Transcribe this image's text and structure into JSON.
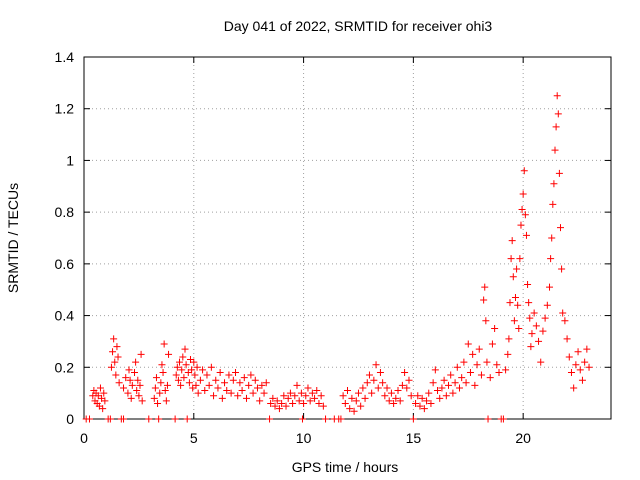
{
  "chart_data": {
    "type": "scatter",
    "title": "Day 041 of 2022, SRMTID for receiver ohi3",
    "xlabel": "GPS time / hours",
    "ylabel": "SRMTID / TECUs",
    "xlim": [
      0,
      24
    ],
    "ylim": [
      0,
      1.4
    ],
    "xticks": [
      0,
      5,
      10,
      15,
      20
    ],
    "yticks": [
      0,
      0.2,
      0.4,
      0.6,
      0.8,
      1,
      1.2,
      1.4
    ],
    "ytick_labels": [
      "0",
      "0.2",
      "0.4",
      "0.6",
      "0.8",
      "1",
      "1.2",
      "1.4"
    ],
    "grid": true,
    "marker": "+",
    "color": "#ff0000",
    "series": [
      {
        "name": "SRMTID",
        "points": [
          [
            0.1,
            0.0
          ],
          [
            0.25,
            0.0
          ],
          [
            0.4,
            0.09
          ],
          [
            0.45,
            0.11
          ],
          [
            0.5,
            0.07
          ],
          [
            0.55,
            0.1
          ],
          [
            0.6,
            0.06
          ],
          [
            0.65,
            0.09
          ],
          [
            0.7,
            0.05
          ],
          [
            0.75,
            0.12
          ],
          [
            0.8,
            0.08
          ],
          [
            0.85,
            0.04
          ],
          [
            0.9,
            0.1
          ],
          [
            0.95,
            0.07
          ],
          [
            1.1,
            0.0
          ],
          [
            1.2,
            0.0
          ],
          [
            1.25,
            0.2
          ],
          [
            1.3,
            0.26
          ],
          [
            1.35,
            0.31
          ],
          [
            1.4,
            0.22
          ],
          [
            1.45,
            0.17
          ],
          [
            1.5,
            0.28
          ],
          [
            1.55,
            0.24
          ],
          [
            1.6,
            0.14
          ],
          [
            1.7,
            0.0
          ],
          [
            1.8,
            0.0
          ],
          [
            1.8,
            0.12
          ],
          [
            1.9,
            0.16
          ],
          [
            2.0,
            0.1
          ],
          [
            2.05,
            0.19
          ],
          [
            2.1,
            0.15
          ],
          [
            2.15,
            0.08
          ],
          [
            2.2,
            0.13
          ],
          [
            2.3,
            0.18
          ],
          [
            2.35,
            0.22
          ],
          [
            2.4,
            0.11
          ],
          [
            2.45,
            0.15
          ],
          [
            2.5,
            0.09
          ],
          [
            2.55,
            0.13
          ],
          [
            2.6,
            0.25
          ],
          [
            2.65,
            0.07
          ],
          [
            2.95,
            0.0
          ],
          [
            3.2,
            0.08
          ],
          [
            3.25,
            0.12
          ],
          [
            3.3,
            0.16
          ],
          [
            3.35,
            0.06
          ],
          [
            3.4,
            0.0
          ],
          [
            3.45,
            0.1
          ],
          [
            3.5,
            0.14
          ],
          [
            3.55,
            0.21
          ],
          [
            3.6,
            0.18
          ],
          [
            3.65,
            0.29
          ],
          [
            3.7,
            0.11
          ],
          [
            3.75,
            0.07
          ],
          [
            3.8,
            0.13
          ],
          [
            3.85,
            0.25
          ],
          [
            4.15,
            0.0
          ],
          [
            4.2,
            0.17
          ],
          [
            4.25,
            0.2
          ],
          [
            4.3,
            0.15
          ],
          [
            4.35,
            0.22
          ],
          [
            4.4,
            0.13
          ],
          [
            4.45,
            0.19
          ],
          [
            4.5,
            0.24
          ],
          [
            4.55,
            0.16
          ],
          [
            4.6,
            0.27
          ],
          [
            4.65,
            0.21
          ],
          [
            4.7,
            0.0
          ],
          [
            4.75,
            0.18
          ],
          [
            4.8,
            0.14
          ],
          [
            4.85,
            0.23
          ],
          [
            4.9,
            0.19
          ],
          [
            4.95,
            0.12
          ],
          [
            5.0,
            0.22
          ],
          [
            5.05,
            0.17
          ],
          [
            5.1,
            0.13
          ],
          [
            5.15,
            0.2
          ],
          [
            5.2,
            0.1
          ],
          [
            5.3,
            0.15
          ],
          [
            5.4,
            0.19
          ],
          [
            5.5,
            0.11
          ],
          [
            5.6,
            0.17
          ],
          [
            5.7,
            0.13
          ],
          [
            5.8,
            0.2
          ],
          [
            5.9,
            0.09
          ],
          [
            6.0,
            0.15
          ],
          [
            6.1,
            0.12
          ],
          [
            6.2,
            0.18
          ],
          [
            6.3,
            0.08
          ],
          [
            6.4,
            0.14
          ],
          [
            6.5,
            0.11
          ],
          [
            6.6,
            0.17
          ],
          [
            6.7,
            0.1
          ],
          [
            6.8,
            0.15
          ],
          [
            6.9,
            0.18
          ],
          [
            7.0,
            0.09
          ],
          [
            7.1,
            0.14
          ],
          [
            7.2,
            0.11
          ],
          [
            7.3,
            0.16
          ],
          [
            7.4,
            0.08
          ],
          [
            7.5,
            0.13
          ],
          [
            7.6,
            0.17
          ],
          [
            7.7,
            0.1
          ],
          [
            7.8,
            0.15
          ],
          [
            7.9,
            0.12
          ],
          [
            8.0,
            0.07
          ],
          [
            8.1,
            0.13
          ],
          [
            8.2,
            0.1
          ],
          [
            8.3,
            0.14
          ],
          [
            8.45,
            0.0
          ],
          [
            8.5,
            0.06
          ],
          [
            8.6,
            0.08
          ],
          [
            8.7,
            0.05
          ],
          [
            8.8,
            0.07
          ],
          [
            8.9,
            0.04
          ],
          [
            9.0,
            0.06
          ],
          [
            9.1,
            0.09
          ],
          [
            9.2,
            0.05
          ],
          [
            9.3,
            0.08
          ],
          [
            9.4,
            0.1
          ],
          [
            9.5,
            0.06
          ],
          [
            9.6,
            0.09
          ],
          [
            9.7,
            0.13
          ],
          [
            9.8,
            0.07
          ],
          [
            9.9,
            0.1
          ],
          [
            9.95,
            0.0
          ],
          [
            10.0,
            0.06
          ],
          [
            10.1,
            0.09
          ],
          [
            10.2,
            0.12
          ],
          [
            10.3,
            0.07
          ],
          [
            10.4,
            0.1
          ],
          [
            10.5,
            0.08
          ],
          [
            10.6,
            0.11
          ],
          [
            10.7,
            0.06
          ],
          [
            10.8,
            0.09
          ],
          [
            10.9,
            0.05
          ],
          [
            11.0,
            0.0
          ],
          [
            11.4,
            0.0
          ],
          [
            11.6,
            0.0
          ],
          [
            11.7,
            0.0
          ],
          [
            11.8,
            0.09
          ],
          [
            11.9,
            0.06
          ],
          [
            12.0,
            0.11
          ],
          [
            12.1,
            0.04
          ],
          [
            12.2,
            0.08
          ],
          [
            12.3,
            0.03
          ],
          [
            12.4,
            0.07
          ],
          [
            12.5,
            0.1
          ],
          [
            12.6,
            0.05
          ],
          [
            12.7,
            0.12
          ],
          [
            12.8,
            0.08
          ],
          [
            12.9,
            0.14
          ],
          [
            13.0,
            0.17
          ],
          [
            13.1,
            0.1
          ],
          [
            13.2,
            0.15
          ],
          [
            13.3,
            0.21
          ],
          [
            13.4,
            0.12
          ],
          [
            13.5,
            0.18
          ],
          [
            13.6,
            0.14
          ],
          [
            13.7,
            0.09
          ],
          [
            13.8,
            0.12
          ],
          [
            13.9,
            0.07
          ],
          [
            14.0,
            0.1
          ],
          [
            14.1,
            0.06
          ],
          [
            14.2,
            0.08
          ],
          [
            14.3,
            0.11
          ],
          [
            14.4,
            0.07
          ],
          [
            14.5,
            0.13
          ],
          [
            14.6,
            0.18
          ],
          [
            14.7,
            0.12
          ],
          [
            14.8,
            0.15
          ],
          [
            14.9,
            0.09
          ],
          [
            15.0,
            0.0
          ],
          [
            15.1,
            0.06
          ],
          [
            15.2,
            0.09
          ],
          [
            15.3,
            0.05
          ],
          [
            15.4,
            0.08
          ],
          [
            15.5,
            0.04
          ],
          [
            15.6,
            0.07
          ],
          [
            15.7,
            0.1
          ],
          [
            15.8,
            0.06
          ],
          [
            15.9,
            0.14
          ],
          [
            16.0,
            0.19
          ],
          [
            16.1,
            0.11
          ],
          [
            16.2,
            0.08
          ],
          [
            16.3,
            0.12
          ],
          [
            16.4,
            0.15
          ],
          [
            16.5,
            0.09
          ],
          [
            16.6,
            0.13
          ],
          [
            16.7,
            0.17
          ],
          [
            16.8,
            0.1
          ],
          [
            16.9,
            0.14
          ],
          [
            17.0,
            0.2
          ],
          [
            17.1,
            0.12
          ],
          [
            17.2,
            0.16
          ],
          [
            17.3,
            0.22
          ],
          [
            17.4,
            0.14
          ],
          [
            17.5,
            0.29
          ],
          [
            17.6,
            0.18
          ],
          [
            17.7,
            0.25
          ],
          [
            17.8,
            0.13
          ],
          [
            17.9,
            0.21
          ],
          [
            18.0,
            0.27
          ],
          [
            18.1,
            0.17
          ],
          [
            18.2,
            0.46
          ],
          [
            18.25,
            0.51
          ],
          [
            18.3,
            0.38
          ],
          [
            18.35,
            0.22
          ],
          [
            18.4,
            0.0
          ],
          [
            18.5,
            0.16
          ],
          [
            18.6,
            0.29
          ],
          [
            18.7,
            0.35
          ],
          [
            18.8,
            0.21
          ],
          [
            18.9,
            0.18
          ],
          [
            19.0,
            0.0
          ],
          [
            19.1,
            0.0
          ],
          [
            19.2,
            0.19
          ],
          [
            19.3,
            0.25
          ],
          [
            19.35,
            0.31
          ],
          [
            19.4,
            0.45
          ],
          [
            19.45,
            0.62
          ],
          [
            19.5,
            0.69
          ],
          [
            19.55,
            0.55
          ],
          [
            19.6,
            0.38
          ],
          [
            19.65,
            0.47
          ],
          [
            19.7,
            0.58
          ],
          [
            19.75,
            0.44
          ],
          [
            19.8,
            0.35
          ],
          [
            19.85,
            0.62
          ],
          [
            19.9,
            0.75
          ],
          [
            19.95,
            0.81
          ],
          [
            20.0,
            0.87
          ],
          [
            20.05,
            0.96
          ],
          [
            20.1,
            0.79
          ],
          [
            20.15,
            0.71
          ],
          [
            20.2,
            0.52
          ],
          [
            20.25,
            0.45
          ],
          [
            20.3,
            0.39
          ],
          [
            20.35,
            0.28
          ],
          [
            20.4,
            0.33
          ],
          [
            20.5,
            0.41
          ],
          [
            20.6,
            0.36
          ],
          [
            20.7,
            0.3
          ],
          [
            20.8,
            0.22
          ],
          [
            20.9,
            0.34
          ],
          [
            21.0,
            0.39
          ],
          [
            21.1,
            0.44
          ],
          [
            21.2,
            0.51
          ],
          [
            21.25,
            0.62
          ],
          [
            21.3,
            0.7
          ],
          [
            21.35,
            0.83
          ],
          [
            21.4,
            0.91
          ],
          [
            21.45,
            1.04
          ],
          [
            21.5,
            1.13
          ],
          [
            21.55,
            1.25
          ],
          [
            21.6,
            1.18
          ],
          [
            21.65,
            0.95
          ],
          [
            21.7,
            0.74
          ],
          [
            21.75,
            0.58
          ],
          [
            21.8,
            0.41
          ],
          [
            21.9,
            0.38
          ],
          [
            22.0,
            0.31
          ],
          [
            22.1,
            0.24
          ],
          [
            22.2,
            0.18
          ],
          [
            22.3,
            0.12
          ],
          [
            22.4,
            0.21
          ],
          [
            22.5,
            0.26
          ],
          [
            22.6,
            0.19
          ],
          [
            22.7,
            0.15
          ],
          [
            22.8,
            0.22
          ],
          [
            22.9,
            0.27
          ],
          [
            23.0,
            0.2
          ]
        ]
      }
    ]
  }
}
